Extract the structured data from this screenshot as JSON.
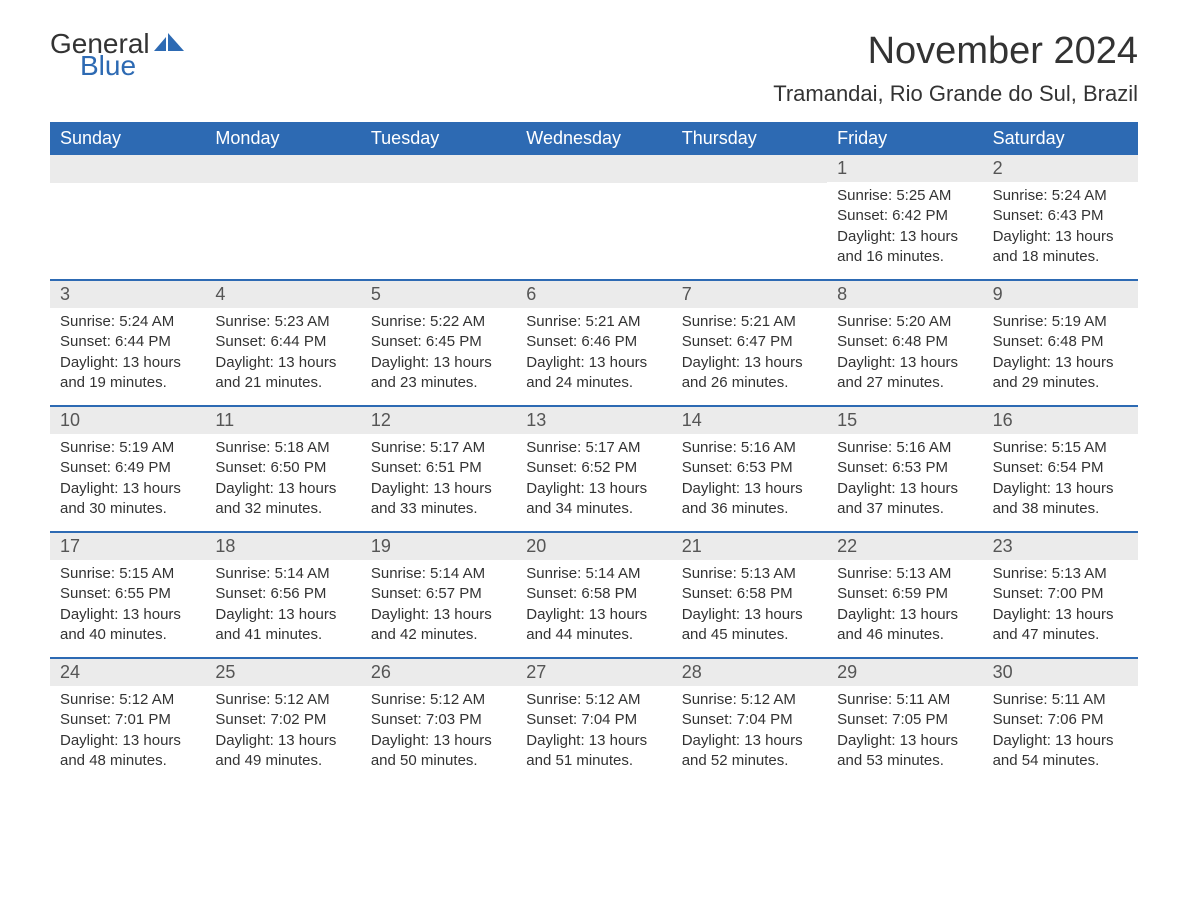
{
  "logo": {
    "general": "General",
    "blue": "Blue",
    "icon_color": "#2d6ab3"
  },
  "title": "November 2024",
  "location": "Tramandai, Rio Grande do Sul, Brazil",
  "colors": {
    "header_bg": "#2d6ab3",
    "header_text": "#ffffff",
    "daynum_bg": "#ebebeb",
    "text": "#333333",
    "border": "#2d6ab3"
  },
  "day_labels": [
    "Sunday",
    "Monday",
    "Tuesday",
    "Wednesday",
    "Thursday",
    "Friday",
    "Saturday"
  ],
  "weeks": [
    [
      {
        "empty": true
      },
      {
        "empty": true
      },
      {
        "empty": true
      },
      {
        "empty": true
      },
      {
        "empty": true
      },
      {
        "num": "1",
        "sunrise": "Sunrise: 5:25 AM",
        "sunset": "Sunset: 6:42 PM",
        "daylight": "Daylight: 13 hours and 16 minutes."
      },
      {
        "num": "2",
        "sunrise": "Sunrise: 5:24 AM",
        "sunset": "Sunset: 6:43 PM",
        "daylight": "Daylight: 13 hours and 18 minutes."
      }
    ],
    [
      {
        "num": "3",
        "sunrise": "Sunrise: 5:24 AM",
        "sunset": "Sunset: 6:44 PM",
        "daylight": "Daylight: 13 hours and 19 minutes."
      },
      {
        "num": "4",
        "sunrise": "Sunrise: 5:23 AM",
        "sunset": "Sunset: 6:44 PM",
        "daylight": "Daylight: 13 hours and 21 minutes."
      },
      {
        "num": "5",
        "sunrise": "Sunrise: 5:22 AM",
        "sunset": "Sunset: 6:45 PM",
        "daylight": "Daylight: 13 hours and 23 minutes."
      },
      {
        "num": "6",
        "sunrise": "Sunrise: 5:21 AM",
        "sunset": "Sunset: 6:46 PM",
        "daylight": "Daylight: 13 hours and 24 minutes."
      },
      {
        "num": "7",
        "sunrise": "Sunrise: 5:21 AM",
        "sunset": "Sunset: 6:47 PM",
        "daylight": "Daylight: 13 hours and 26 minutes."
      },
      {
        "num": "8",
        "sunrise": "Sunrise: 5:20 AM",
        "sunset": "Sunset: 6:48 PM",
        "daylight": "Daylight: 13 hours and 27 minutes."
      },
      {
        "num": "9",
        "sunrise": "Sunrise: 5:19 AM",
        "sunset": "Sunset: 6:48 PM",
        "daylight": "Daylight: 13 hours and 29 minutes."
      }
    ],
    [
      {
        "num": "10",
        "sunrise": "Sunrise: 5:19 AM",
        "sunset": "Sunset: 6:49 PM",
        "daylight": "Daylight: 13 hours and 30 minutes."
      },
      {
        "num": "11",
        "sunrise": "Sunrise: 5:18 AM",
        "sunset": "Sunset: 6:50 PM",
        "daylight": "Daylight: 13 hours and 32 minutes."
      },
      {
        "num": "12",
        "sunrise": "Sunrise: 5:17 AM",
        "sunset": "Sunset: 6:51 PM",
        "daylight": "Daylight: 13 hours and 33 minutes."
      },
      {
        "num": "13",
        "sunrise": "Sunrise: 5:17 AM",
        "sunset": "Sunset: 6:52 PM",
        "daylight": "Daylight: 13 hours and 34 minutes."
      },
      {
        "num": "14",
        "sunrise": "Sunrise: 5:16 AM",
        "sunset": "Sunset: 6:53 PM",
        "daylight": "Daylight: 13 hours and 36 minutes."
      },
      {
        "num": "15",
        "sunrise": "Sunrise: 5:16 AM",
        "sunset": "Sunset: 6:53 PM",
        "daylight": "Daylight: 13 hours and 37 minutes."
      },
      {
        "num": "16",
        "sunrise": "Sunrise: 5:15 AM",
        "sunset": "Sunset: 6:54 PM",
        "daylight": "Daylight: 13 hours and 38 minutes."
      }
    ],
    [
      {
        "num": "17",
        "sunrise": "Sunrise: 5:15 AM",
        "sunset": "Sunset: 6:55 PM",
        "daylight": "Daylight: 13 hours and 40 minutes."
      },
      {
        "num": "18",
        "sunrise": "Sunrise: 5:14 AM",
        "sunset": "Sunset: 6:56 PM",
        "daylight": "Daylight: 13 hours and 41 minutes."
      },
      {
        "num": "19",
        "sunrise": "Sunrise: 5:14 AM",
        "sunset": "Sunset: 6:57 PM",
        "daylight": "Daylight: 13 hours and 42 minutes."
      },
      {
        "num": "20",
        "sunrise": "Sunrise: 5:14 AM",
        "sunset": "Sunset: 6:58 PM",
        "daylight": "Daylight: 13 hours and 44 minutes."
      },
      {
        "num": "21",
        "sunrise": "Sunrise: 5:13 AM",
        "sunset": "Sunset: 6:58 PM",
        "daylight": "Daylight: 13 hours and 45 minutes."
      },
      {
        "num": "22",
        "sunrise": "Sunrise: 5:13 AM",
        "sunset": "Sunset: 6:59 PM",
        "daylight": "Daylight: 13 hours and 46 minutes."
      },
      {
        "num": "23",
        "sunrise": "Sunrise: 5:13 AM",
        "sunset": "Sunset: 7:00 PM",
        "daylight": "Daylight: 13 hours and 47 minutes."
      }
    ],
    [
      {
        "num": "24",
        "sunrise": "Sunrise: 5:12 AM",
        "sunset": "Sunset: 7:01 PM",
        "daylight": "Daylight: 13 hours and 48 minutes."
      },
      {
        "num": "25",
        "sunrise": "Sunrise: 5:12 AM",
        "sunset": "Sunset: 7:02 PM",
        "daylight": "Daylight: 13 hours and 49 minutes."
      },
      {
        "num": "26",
        "sunrise": "Sunrise: 5:12 AM",
        "sunset": "Sunset: 7:03 PM",
        "daylight": "Daylight: 13 hours and 50 minutes."
      },
      {
        "num": "27",
        "sunrise": "Sunrise: 5:12 AM",
        "sunset": "Sunset: 7:04 PM",
        "daylight": "Daylight: 13 hours and 51 minutes."
      },
      {
        "num": "28",
        "sunrise": "Sunrise: 5:12 AM",
        "sunset": "Sunset: 7:04 PM",
        "daylight": "Daylight: 13 hours and 52 minutes."
      },
      {
        "num": "29",
        "sunrise": "Sunrise: 5:11 AM",
        "sunset": "Sunset: 7:05 PM",
        "daylight": "Daylight: 13 hours and 53 minutes."
      },
      {
        "num": "30",
        "sunrise": "Sunrise: 5:11 AM",
        "sunset": "Sunset: 7:06 PM",
        "daylight": "Daylight: 13 hours and 54 minutes."
      }
    ]
  ]
}
